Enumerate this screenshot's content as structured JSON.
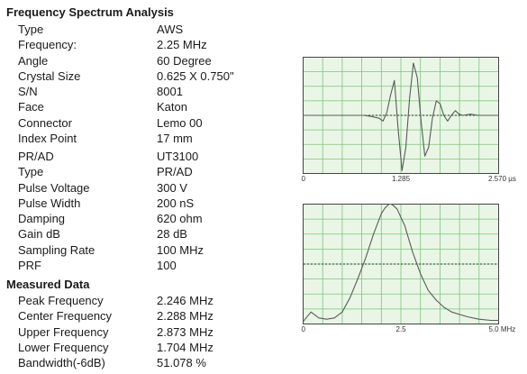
{
  "title": "Frequency Spectrum Analysis",
  "probe_info": [
    {
      "label": "Type",
      "value": "AWS"
    },
    {
      "label": "Frequency:",
      "value": "2.25 MHz"
    },
    {
      "label": "Angle",
      "value": "60 Degree"
    },
    {
      "label": "Crystal Size",
      "value": "0.625 X 0.750\""
    },
    {
      "label": "S/N",
      "value": "8001"
    },
    {
      "label": "Face",
      "value": "Katon"
    },
    {
      "label": "Connector",
      "value": "Lemo 00"
    },
    {
      "label": "Index Point",
      "value": "17 mm"
    }
  ],
  "instrument_info": [
    {
      "label": "PR/AD",
      "value": "UT3100"
    },
    {
      "label": "Type",
      "value": "PR/AD"
    },
    {
      "label": "Pulse Voltage",
      "value": "300 V"
    },
    {
      "label": "Pulse Width",
      "value": "200 nS"
    },
    {
      "label": "Damping",
      "value": "620 ohm"
    },
    {
      "label": "Gain dB",
      "value": "28 dB"
    },
    {
      "label": "Sampling Rate",
      "value": "100 MHz"
    },
    {
      "label": "PRF",
      "value": "100"
    }
  ],
  "measured_title": "Measured Data",
  "measured_data": [
    {
      "label": "Peak Frequency",
      "value": "2.246 MHz"
    },
    {
      "label": "Center Frequency",
      "value": "2.288 MHz"
    },
    {
      "label": "Upper Frequency",
      "value": "2.873 MHz"
    },
    {
      "label": "Lower Frequency",
      "value": "1.704 MHz"
    },
    {
      "label": "Bandwidth(-6dB)",
      "value": "51.078 %"
    }
  ],
  "colors": {
    "chart_bg": "#e9f6e6",
    "grid": "#7cc47a",
    "trace": "#5a5a5a"
  },
  "chart_data": [
    {
      "type": "line",
      "xlim": [
        0,
        2.57
      ],
      "ylim": [
        -1,
        1
      ],
      "x_ticks": [
        {
          "value": 0,
          "label": "0"
        },
        {
          "value": 1.285,
          "label": "1.285"
        },
        {
          "value": 2.57,
          "label": "2.570 µs"
        }
      ],
      "grid": true,
      "reference_line": 0,
      "series": [
        {
          "x": [
            0.0,
            0.4,
            0.8,
            0.9,
            1.0,
            1.05,
            1.1,
            1.15,
            1.2,
            1.25,
            1.3,
            1.35,
            1.4,
            1.45,
            1.5,
            1.55,
            1.6,
            1.65,
            1.7,
            1.75,
            1.8,
            1.85,
            1.9,
            1.95,
            2.0,
            2.05,
            2.1,
            2.2,
            2.3,
            2.57
          ],
          "y": [
            0.0,
            0.0,
            0.0,
            -0.02,
            -0.05,
            -0.1,
            0.05,
            0.35,
            0.6,
            -0.25,
            -0.95,
            -0.55,
            0.3,
            0.9,
            0.65,
            -0.1,
            -0.7,
            -0.55,
            -0.05,
            0.25,
            0.2,
            0.0,
            -0.1,
            0.0,
            0.08,
            0.02,
            0.0,
            0.02,
            0.0,
            0.0
          ]
        }
      ]
    },
    {
      "type": "line",
      "xlim": [
        0,
        5.0
      ],
      "ylim": [
        0,
        1
      ],
      "x_ticks": [
        {
          "value": 0,
          "label": "0"
        },
        {
          "value": 2.5,
          "label": "2.5"
        },
        {
          "value": 5.0,
          "label": "5.0 MHz"
        }
      ],
      "grid": true,
      "reference_line": 0.5,
      "series": [
        {
          "x": [
            0.0,
            0.2,
            0.4,
            0.6,
            0.8,
            1.0,
            1.2,
            1.4,
            1.6,
            1.8,
            2.0,
            2.1,
            2.2,
            2.25,
            2.3,
            2.4,
            2.6,
            2.8,
            3.0,
            3.2,
            3.4,
            3.6,
            3.8,
            4.0,
            4.2,
            4.5,
            4.8,
            5.0
          ],
          "y": [
            0.02,
            0.1,
            0.05,
            0.04,
            0.05,
            0.1,
            0.22,
            0.38,
            0.55,
            0.75,
            0.92,
            0.97,
            1.0,
            1.0,
            0.99,
            0.96,
            0.82,
            0.6,
            0.42,
            0.28,
            0.2,
            0.14,
            0.1,
            0.08,
            0.06,
            0.04,
            0.03,
            0.03
          ]
        }
      ]
    }
  ]
}
